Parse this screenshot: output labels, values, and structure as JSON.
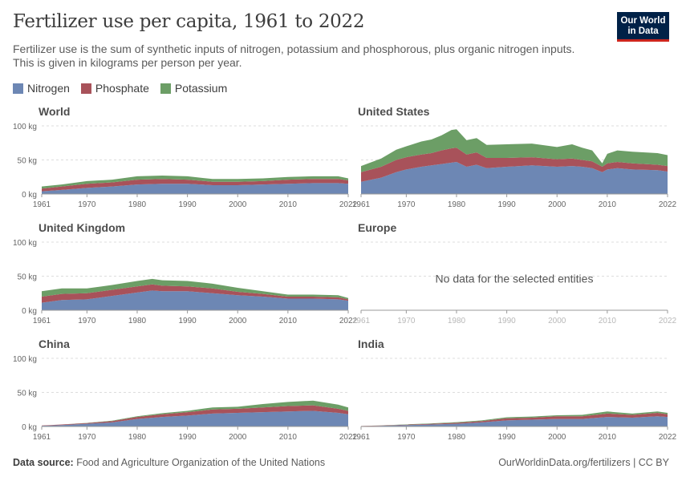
{
  "header": {
    "title": "Fertilizer use per capita, 1961 to 2022",
    "subtitle": "Fertilizer use is the sum of synthetic inputs of nitrogen, potassium and phosphorous, plus organic nitrogen inputs. This is given in kilograms per person per year."
  },
  "logo": {
    "line1": "Our World",
    "line2": "in Data"
  },
  "legend": [
    {
      "label": "Nitrogen",
      "color": "#6d87b4"
    },
    {
      "label": "Phosphate",
      "color": "#a8525a"
    },
    {
      "label": "Potassium",
      "color": "#6c9e66"
    }
  ],
  "footer": {
    "source_label": "Data source:",
    "source_text": " Food and Agriculture Organization of the United Nations",
    "url_text": "OurWorldinData.org/fertilizers | CC BY"
  },
  "chart_data": {
    "type": "area",
    "stacked": true,
    "unit": "kg",
    "ylim": [
      0,
      100
    ],
    "y_ticks": [
      "0 kg",
      "50 kg",
      "100 kg"
    ],
    "y_tick_values": [
      0,
      50,
      100
    ],
    "x_ticks": [
      1961,
      1970,
      1980,
      1990,
      2000,
      2010,
      2022
    ],
    "x_range": [
      1961,
      2022
    ],
    "grid": true,
    "legend_position": "top-left",
    "series_names": [
      "Nitrogen",
      "Phosphate",
      "Potassium"
    ],
    "panels": [
      {
        "title": "World",
        "years": [
          1961,
          1965,
          1970,
          1975,
          1980,
          1985,
          1990,
          1995,
          2000,
          2005,
          2010,
          2015,
          2020,
          2022
        ],
        "nitrogen": [
          4,
          6,
          9,
          11,
          14,
          15,
          15,
          13,
          13,
          14,
          15,
          16,
          16,
          15
        ],
        "phosphate": [
          4,
          5,
          6,
          6,
          7,
          7,
          6,
          5,
          5,
          5,
          6,
          6,
          6,
          5
        ],
        "potassium": [
          3,
          3,
          4,
          4,
          5,
          5,
          5,
          4,
          4,
          4,
          4,
          4,
          4,
          3
        ]
      },
      {
        "title": "United States",
        "years": [
          1961,
          1965,
          1968,
          1970,
          1973,
          1975,
          1977,
          1979,
          1980,
          1982,
          1984,
          1986,
          1990,
          1995,
          2000,
          2003,
          2005,
          2007,
          2009,
          2010,
          2012,
          2015,
          2020,
          2022
        ],
        "nitrogen": [
          18,
          24,
          32,
          36,
          40,
          42,
          44,
          46,
          47,
          40,
          43,
          38,
          40,
          42,
          40,
          41,
          40,
          38,
          32,
          36,
          38,
          36,
          35,
          33
        ],
        "phosphate": [
          14,
          16,
          18,
          18,
          18,
          18,
          20,
          21,
          21,
          18,
          18,
          15,
          13,
          12,
          11,
          11,
          10,
          10,
          8,
          9,
          9,
          9,
          8,
          8
        ],
        "potassium": [
          9,
          12,
          15,
          16,
          19,
          20,
          22,
          27,
          27,
          21,
          21,
          19,
          20,
          20,
          18,
          21,
          18,
          16,
          5,
          14,
          17,
          17,
          17,
          16
        ]
      },
      {
        "title": "United Kingdom",
        "years": [
          1961,
          1965,
          1970,
          1975,
          1980,
          1983,
          1985,
          1990,
          1995,
          2000,
          2005,
          2010,
          2015,
          2020,
          2022
        ],
        "nitrogen": [
          11,
          15,
          16,
          21,
          26,
          29,
          28,
          28,
          25,
          22,
          20,
          17,
          17,
          16,
          14
        ],
        "phosphate": [
          9,
          9,
          9,
          9,
          9,
          9,
          8,
          7,
          7,
          5,
          4,
          3,
          3,
          3,
          2
        ],
        "potassium": [
          8,
          8,
          7,
          7,
          8,
          8,
          8,
          8,
          7,
          6,
          4,
          3,
          3,
          3,
          2
        ]
      },
      {
        "title": "Europe",
        "no_data_text": "No data for the selected entities"
      },
      {
        "title": "China",
        "years": [
          1961,
          1965,
          1970,
          1975,
          1980,
          1985,
          1990,
          1995,
          2000,
          2005,
          2010,
          2015,
          2020,
          2022
        ],
        "nitrogen": [
          1,
          2,
          4,
          6,
          11,
          14,
          16,
          19,
          20,
          21,
          22,
          23,
          20,
          18
        ],
        "phosphate": [
          0.5,
          1,
          1,
          2,
          3,
          4,
          5,
          6,
          6,
          7,
          8,
          8,
          6,
          5
        ],
        "potassium": [
          0,
          0,
          0.3,
          0.5,
          1,
          1.5,
          2,
          3,
          3,
          5,
          6,
          7,
          6,
          5
        ]
      },
      {
        "title": "India",
        "years": [
          1961,
          1965,
          1970,
          1975,
          1980,
          1985,
          1990,
          1995,
          2000,
          2005,
          2010,
          2015,
          2020,
          2022
        ],
        "nitrogen": [
          0.5,
          1,
          2,
          3,
          4,
          6,
          9,
          10,
          11,
          11,
          14,
          13,
          15,
          14
        ],
        "phosphate": [
          0.2,
          0.4,
          0.7,
          1,
          1.5,
          2,
          3,
          3,
          4,
          4,
          5,
          4,
          5,
          4
        ],
        "potassium": [
          0.1,
          0.2,
          0.4,
          0.6,
          0.8,
          1,
          1.5,
          1.5,
          1.5,
          2,
          3,
          2,
          2,
          2
        ]
      }
    ]
  }
}
